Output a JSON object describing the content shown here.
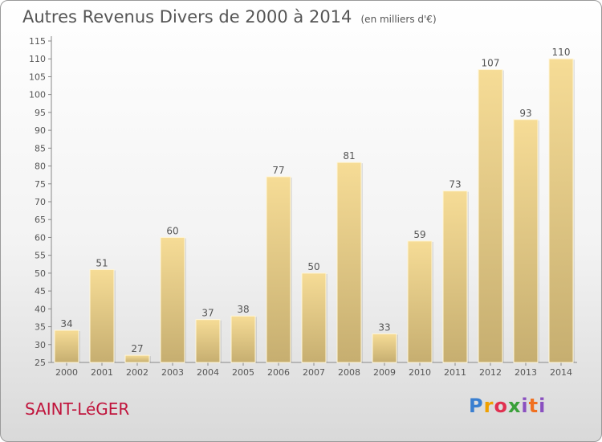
{
  "header": {
    "title": "Autres Revenus Divers de 2000 à 2014",
    "unit": "(en milliers d'€)"
  },
  "footer": {
    "commune": "SAINT-LéGER",
    "logo": [
      "P",
      "r",
      "o",
      "x",
      "i",
      "t",
      "i"
    ]
  },
  "colors": {
    "bar_light": "#f6dc96",
    "bar_dark": "#c6ae70",
    "commune": "#c0143c",
    "text": "#555555"
  },
  "chart_data": {
    "type": "bar",
    "categories": [
      "2000",
      "2001",
      "2002",
      "2003",
      "2004",
      "2005",
      "2006",
      "2007",
      "2008",
      "2009",
      "2010",
      "2011",
      "2012",
      "2013",
      "2014"
    ],
    "values": [
      34,
      51,
      27,
      60,
      37,
      38,
      77,
      50,
      81,
      33,
      59,
      73,
      107,
      93,
      110
    ],
    "data_labels": [
      "34",
      "51",
      "27",
      "60",
      "37",
      "38",
      "77",
      "50",
      "81",
      "33",
      "59",
      "73",
      "107",
      "93",
      "110"
    ],
    "ylim": [
      25,
      115
    ],
    "yticks": [
      25,
      30,
      35,
      40,
      45,
      50,
      55,
      60,
      65,
      70,
      75,
      80,
      85,
      90,
      95,
      100,
      105,
      110,
      115
    ],
    "grid": false,
    "legend": "none"
  }
}
